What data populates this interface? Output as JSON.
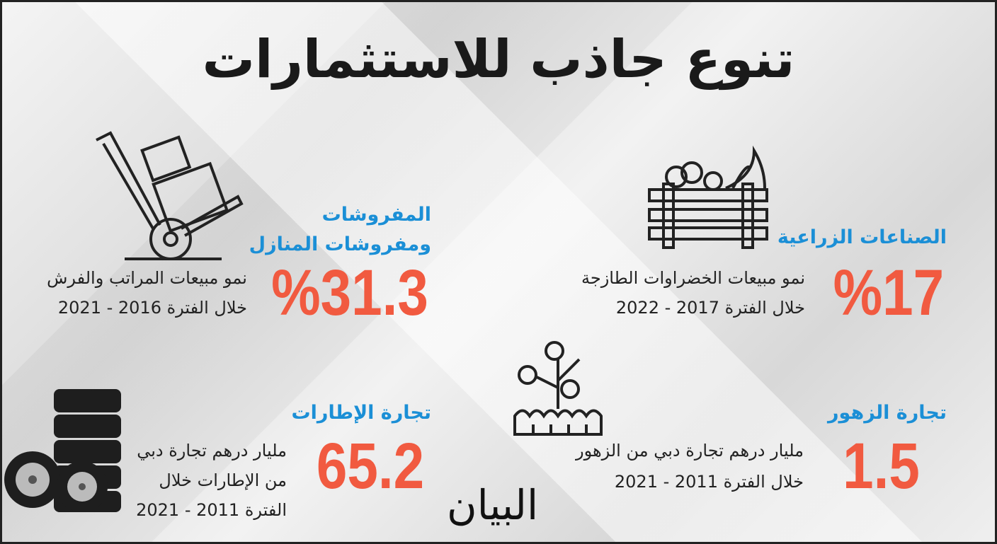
{
  "title": "تنوع جاذب للاستثمارات",
  "colors": {
    "heading": "#1b8fd6",
    "figure": "#f15a40",
    "text": "#222222"
  },
  "items": [
    {
      "heading": "الصناعات الزراعية",
      "figure": "%17",
      "desc1": "نمو مبيعات الخضراوات الطازجة",
      "desc2": "خلال الفترة 2017 - 2022",
      "icon": "vegetable-crate-icon"
    },
    {
      "heading1": "المفروشات",
      "heading2": "ومفروشات المنازل",
      "figure": "%31.3",
      "desc1": "نمو مبيعات المراتب والفرش",
      "desc2": "خلال الفترة 2016 - 2021",
      "icon": "hand-truck-icon"
    },
    {
      "heading": "تجارة الزهور",
      "figure": "1.5",
      "desc1": "مليار درهم تجارة دبي من الزهور",
      "desc2": "خلال الفترة 2011 - 2021",
      "icon": "flower-planter-icon"
    },
    {
      "heading": "تجارة الإطارات",
      "figure": "65.2",
      "desc1": "مليار درهم تجارة دبي",
      "desc2": "من الإطارات خلال",
      "desc3": "الفترة 2011 - 2021",
      "icon": "tire-stack-icon"
    }
  ],
  "logo": "البيان"
}
